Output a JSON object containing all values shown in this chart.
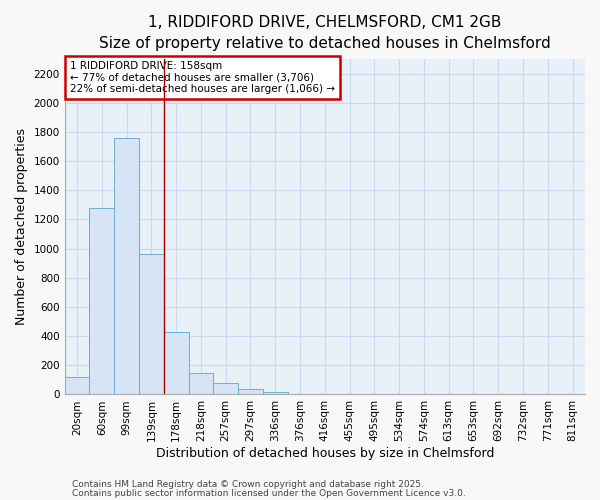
{
  "title_line1": "1, RIDDIFORD DRIVE, CHELMSFORD, CM1 2GB",
  "title_line2": "Size of property relative to detached houses in Chelmsford",
  "xlabel": "Distribution of detached houses by size in Chelmsford",
  "ylabel": "Number of detached properties",
  "bar_labels": [
    "20sqm",
    "60sqm",
    "99sqm",
    "139sqm",
    "178sqm",
    "218sqm",
    "257sqm",
    "297sqm",
    "336sqm",
    "376sqm",
    "416sqm",
    "455sqm",
    "495sqm",
    "534sqm",
    "574sqm",
    "613sqm",
    "653sqm",
    "692sqm",
    "732sqm",
    "771sqm",
    "811sqm"
  ],
  "bar_values": [
    120,
    1280,
    1760,
    960,
    430,
    150,
    80,
    40,
    20,
    0,
    0,
    0,
    0,
    0,
    0,
    0,
    0,
    0,
    0,
    0,
    0
  ],
  "bar_color": "#d6e4f5",
  "bar_edgecolor": "#6baed6",
  "ylim": [
    0,
    2300
  ],
  "yticks": [
    0,
    200,
    400,
    600,
    800,
    1000,
    1200,
    1400,
    1600,
    1800,
    2000,
    2200
  ],
  "property_line_x": 3.5,
  "property_line_color": "#aa0000",
  "annotation_text": "1 RIDDIFORD DRIVE: 158sqm\n← 77% of detached houses are smaller (3,706)\n22% of semi-detached houses are larger (1,066) →",
  "annotation_box_color": "#cc0000",
  "annotation_bg": "#ffffff",
  "grid_color": "#c8d8ee",
  "bg_color": "#e8f0f8",
  "fig_bg_color": "#f8f8f8",
  "footer_line1": "Contains HM Land Registry data © Crown copyright and database right 2025.",
  "footer_line2": "Contains public sector information licensed under the Open Government Licence v3.0.",
  "title_fontsize": 11,
  "subtitle_fontsize": 9.5,
  "axis_label_fontsize": 9,
  "tick_fontsize": 7.5,
  "annotation_fontsize": 7.5,
  "footer_fontsize": 6.5
}
